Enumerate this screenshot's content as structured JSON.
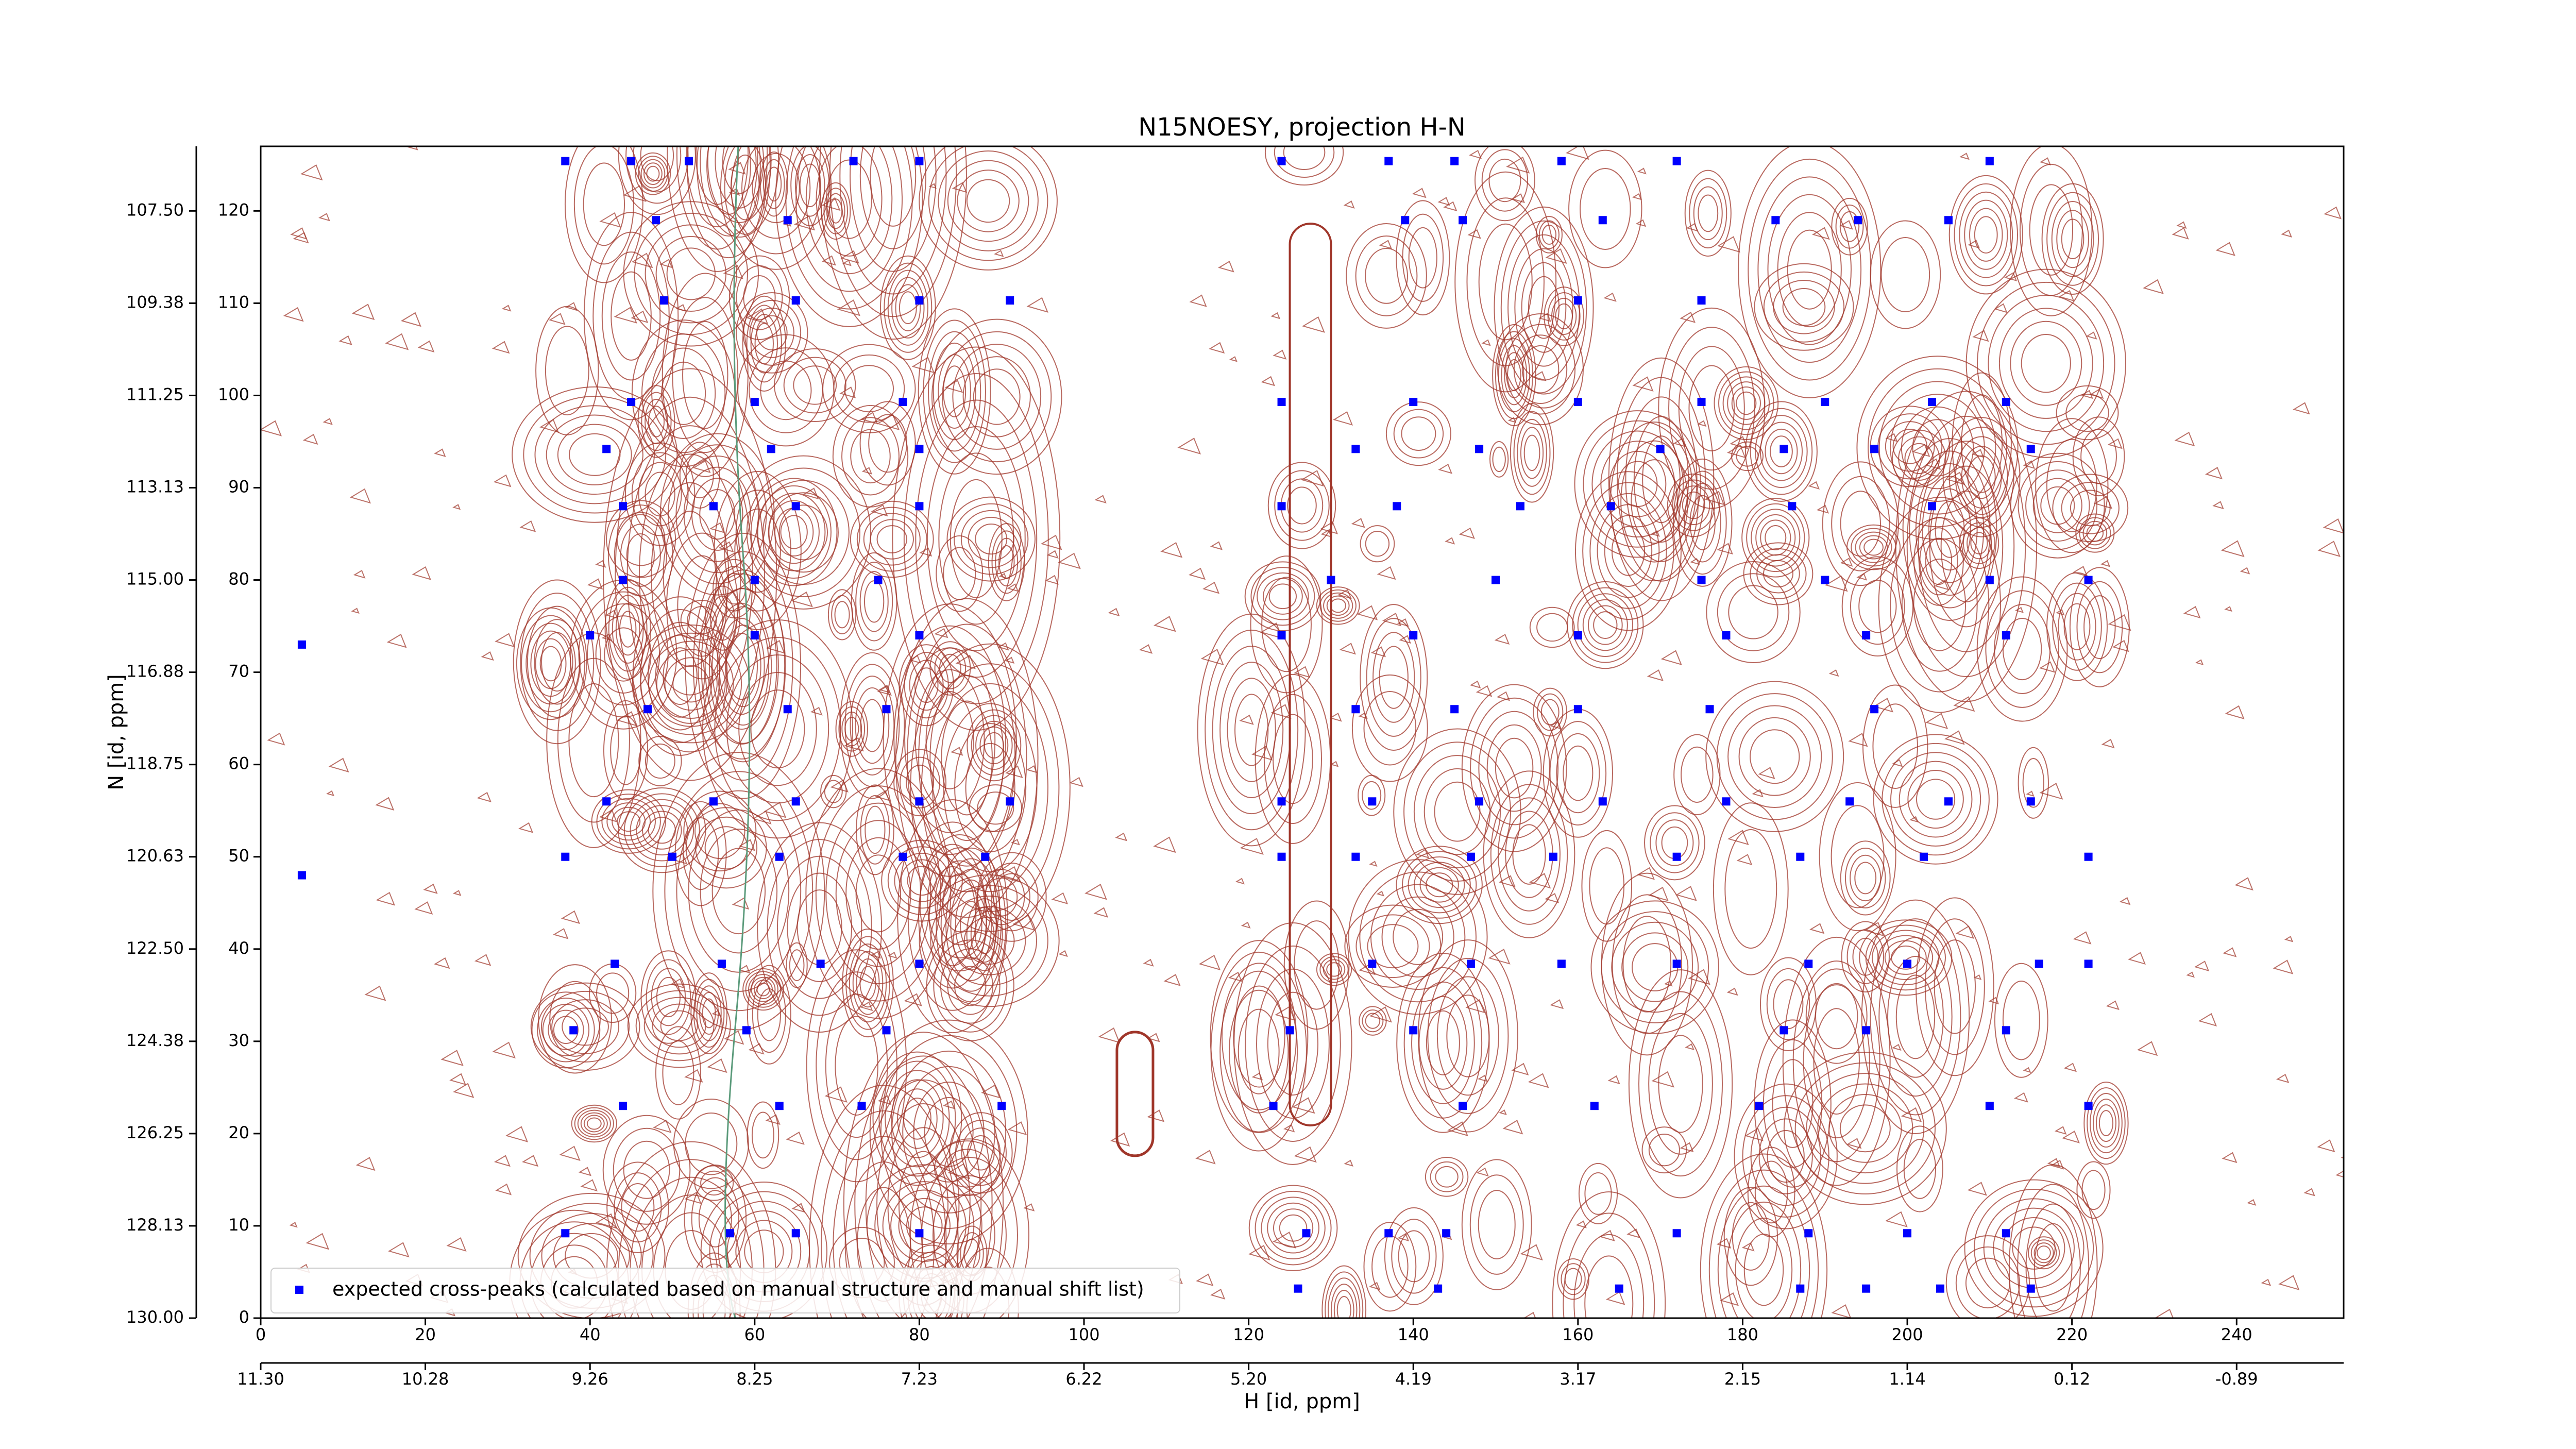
{
  "chart_data": {
    "type": "scatter",
    "title": "N15NOESY, projection H-N",
    "x_label": "H [id, ppm]",
    "y_label": "N [id, ppm]",
    "xlim": [
      0,
      253
    ],
    "ylim": [
      0,
      127
    ],
    "xticks": [
      0,
      20,
      40,
      60,
      80,
      100,
      120,
      140,
      160,
      180,
      200,
      220,
      240
    ],
    "yticks": [
      0,
      10,
      20,
      30,
      40,
      50,
      60,
      70,
      80,
      90,
      100,
      110,
      120
    ],
    "x2ticks": [
      {
        "value": 0,
        "label": "11.30"
      },
      {
        "value": 20,
        "label": "10.28"
      },
      {
        "value": 40,
        "label": "9.26"
      },
      {
        "value": 60,
        "label": "8.25"
      },
      {
        "value": 80,
        "label": "7.23"
      },
      {
        "value": 100,
        "label": "6.22"
      },
      {
        "value": 120,
        "label": "5.20"
      },
      {
        "value": 140,
        "label": "4.19"
      },
      {
        "value": 160,
        "label": "3.17"
      },
      {
        "value": 180,
        "label": "2.15"
      },
      {
        "value": 200,
        "label": "1.14"
      },
      {
        "value": 220,
        "label": "0.12"
      },
      {
        "value": 240,
        "label": "-0.89"
      }
    ],
    "y2ticks": [
      {
        "value": 0,
        "label": "130.00"
      },
      {
        "value": 10,
        "label": "128.13"
      },
      {
        "value": 20,
        "label": "126.25"
      },
      {
        "value": 30,
        "label": "124.38"
      },
      {
        "value": 40,
        "label": "122.50"
      },
      {
        "value": 50,
        "label": "120.63"
      },
      {
        "value": 60,
        "label": "118.75"
      },
      {
        "value": 70,
        "label": "116.88"
      },
      {
        "value": 80,
        "label": "115.00"
      },
      {
        "value": 90,
        "label": "113.13"
      },
      {
        "value": 100,
        "label": "111.25"
      },
      {
        "value": 110,
        "label": "109.38"
      },
      {
        "value": 120,
        "label": "107.50"
      }
    ],
    "legend": "lower left",
    "series": [
      {
        "name": "expected cross-peaks (calculated based on manual structure and manual shift list)",
        "color": "#0000ff",
        "x": [
          37,
          45,
          52,
          72,
          80,
          124,
          137,
          145,
          158,
          172,
          210,
          48,
          64,
          139,
          146,
          163,
          184,
          194,
          205,
          49,
          65,
          80,
          91,
          160,
          175,
          45,
          60,
          78,
          124,
          140,
          160,
          175,
          190,
          203,
          212,
          42,
          62,
          80,
          133,
          148,
          170,
          185,
          196,
          215,
          44,
          55,
          65,
          80,
          124,
          138,
          153,
          164,
          186,
          203,
          44,
          60,
          75,
          130,
          150,
          175,
          190,
          210,
          222,
          40,
          60,
          80,
          124,
          140,
          160,
          178,
          195,
          212,
          47,
          64,
          76,
          133,
          145,
          160,
          176,
          196,
          42,
          55,
          65,
          80,
          91,
          124,
          135,
          148,
          163,
          178,
          193,
          205,
          215,
          37,
          50,
          63,
          78,
          88,
          124,
          133,
          147,
          157,
          172,
          187,
          202,
          222,
          43,
          56,
          68,
          80,
          135,
          147,
          158,
          172,
          188,
          200,
          216,
          222,
          38,
          59,
          76,
          125,
          140,
          185,
          195,
          212,
          44,
          63,
          73,
          90,
          123,
          146,
          162,
          182,
          210,
          222,
          37,
          57,
          65,
          80,
          127,
          137,
          144,
          172,
          188,
          200,
          212,
          126,
          143,
          165,
          187,
          195,
          204,
          215,
          5,
          5
        ],
        "values": [
          125.4,
          125.4,
          125.4,
          125.4,
          125.4,
          125.4,
          125.4,
          125.4,
          125.4,
          125.4,
          125.4,
          119,
          119,
          119,
          119,
          119,
          119,
          119,
          119,
          110.3,
          110.3,
          110.3,
          110.3,
          110.3,
          110.3,
          99.3,
          99.3,
          99.3,
          99.3,
          99.3,
          99.3,
          99.3,
          99.3,
          99.3,
          99.3,
          94.2,
          94.2,
          94.2,
          94.2,
          94.2,
          94.2,
          94.2,
          94.2,
          94.2,
          88,
          88,
          88,
          88,
          88,
          88,
          88,
          88,
          88,
          88,
          80,
          80,
          80,
          80,
          80,
          80,
          80,
          80,
          80,
          74,
          74,
          74,
          74,
          74,
          74,
          74,
          74,
          74,
          66,
          66,
          66,
          66,
          66,
          66,
          66,
          66,
          56,
          56,
          56,
          56,
          56,
          56,
          56,
          56,
          56,
          56,
          56,
          56,
          56,
          50,
          50,
          50,
          50,
          50,
          50,
          50,
          50,
          50,
          50,
          50,
          50,
          50,
          38.4,
          38.4,
          38.4,
          38.4,
          38.4,
          38.4,
          38.4,
          38.4,
          38.4,
          38.4,
          38.4,
          38.4,
          31.2,
          31.2,
          31.2,
          31.2,
          31.2,
          31.2,
          31.2,
          31.2,
          23,
          23,
          23,
          23,
          23,
          23,
          23,
          23,
          23,
          23,
          9.2,
          9.2,
          9.2,
          9.2,
          9.2,
          9.2,
          9.2,
          9.2,
          9.2,
          9.2,
          9.2,
          3.2,
          3.2,
          3.2,
          3.2,
          3.2,
          3.2,
          3.2,
          73,
          48
        ]
      }
    ]
  }
}
